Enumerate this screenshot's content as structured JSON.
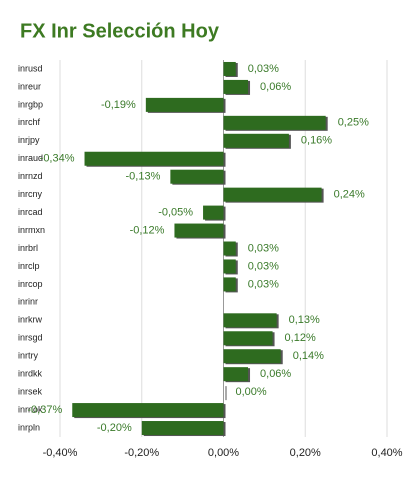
{
  "chart_data": {
    "type": "hbar",
    "title": "FX Inr Selección Hoy",
    "categories": [
      "inrusd",
      "inreur",
      "inrgbp",
      "inrchf",
      "inrjpy",
      "inraud",
      "inrnzd",
      "inrcny",
      "inrcad",
      "inrmxn",
      "inrbrl",
      "inrclp",
      "inrcop",
      "inrinr",
      "inrkrw",
      "inrsgd",
      "inrtry",
      "inrdkk",
      "inrsek",
      "inrnok",
      "inrpln"
    ],
    "values": [
      0.03,
      0.06,
      -0.19,
      0.25,
      0.16,
      -0.34,
      -0.13,
      0.24,
      -0.05,
      -0.12,
      0.03,
      0.03,
      0.03,
      null,
      0.13,
      0.12,
      0.14,
      0.06,
      0.0,
      -0.37,
      -0.2
    ],
    "value_labels": [
      "0,03%",
      "0,06%",
      "-0,19%",
      "0,25%",
      "0,16%",
      "-0,34%",
      "-0,13%",
      "0,24%",
      "-0,05%",
      "-0,12%",
      "0,03%",
      "0,03%",
      "0,03%",
      null,
      "0,13%",
      "0,12%",
      "0,14%",
      "0,06%",
      "0,00%",
      "-0,37%",
      "-0,20%"
    ],
    "color": "#2e6b1f",
    "xlim": [
      -0.4,
      0.4
    ],
    "xticks": [
      {
        "value": -0.4,
        "label": "-0,40%"
      },
      {
        "value": -0.2,
        "label": "-0,20%"
      },
      {
        "value": 0,
        "label": "0,00%"
      },
      {
        "value": 0.2,
        "label": "0,20%"
      },
      {
        "value": 0.4,
        "label": "0,40%"
      }
    ],
    "grid": true
  }
}
